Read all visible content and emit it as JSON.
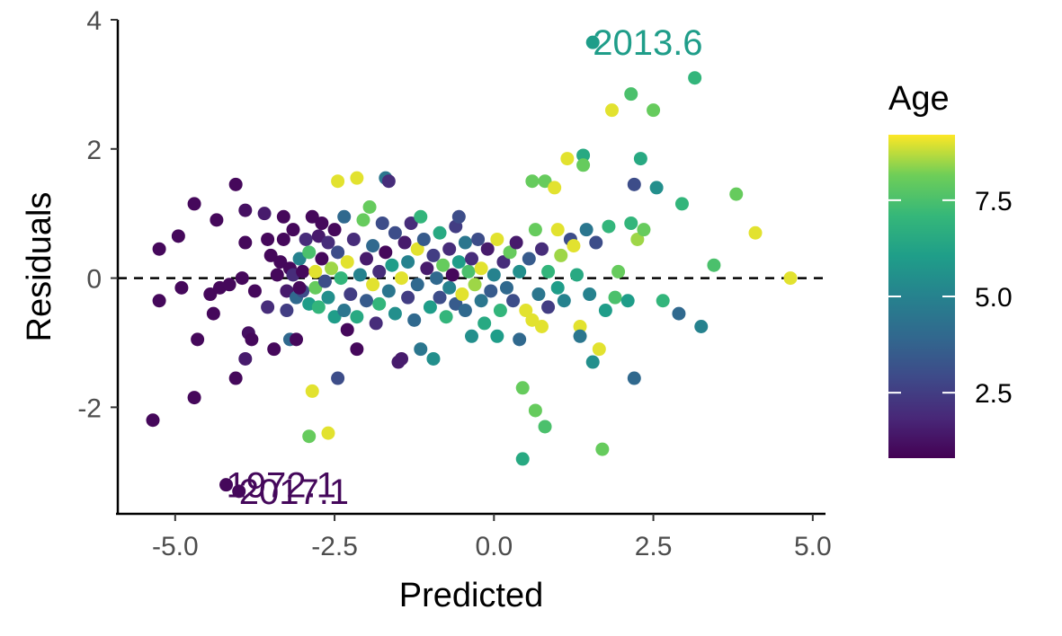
{
  "chart_data": {
    "type": "scatter",
    "title": "",
    "xlabel": "Predicted",
    "ylabel": "Residuals",
    "xlim": [
      -5.9,
      5.2
    ],
    "ylim": [
      -3.65,
      4.0
    ],
    "x_ticks": [
      -5.0,
      -2.5,
      0.0,
      2.5,
      5.0
    ],
    "x_tick_labels": [
      "-5.0",
      "-2.5",
      "0.0",
      "2.5",
      "5.0"
    ],
    "y_ticks": [
      -2,
      0,
      2,
      4
    ],
    "y_tick_labels": [
      "-2",
      "0",
      "2",
      "4"
    ],
    "grid": false,
    "reference_line": {
      "y": 0,
      "style": "dashed",
      "color": "#000000"
    },
    "color_scale": {
      "title": "Age",
      "palette": "viridis",
      "min": 0.8,
      "max": 9.2,
      "ticks": [
        2.5,
        5.0,
        7.5
      ],
      "tick_labels": [
        "2.5",
        "5.0",
        "7.5"
      ],
      "legend_position": "right"
    },
    "points": [
      {
        "x": -5.35,
        "y": -2.2,
        "age": 1.0
      },
      {
        "x": -5.25,
        "y": 0.45,
        "age": 1.0
      },
      {
        "x": -5.25,
        "y": -0.35,
        "age": 1.0
      },
      {
        "x": -4.95,
        "y": 0.65,
        "age": 1.0
      },
      {
        "x": -4.9,
        "y": -0.15,
        "age": 1.0
      },
      {
        "x": -4.7,
        "y": 1.15,
        "age": 1.0
      },
      {
        "x": -4.7,
        "y": -1.85,
        "age": 1.0
      },
      {
        "x": -4.65,
        "y": -0.95,
        "age": 1.0
      },
      {
        "x": -4.45,
        "y": -0.25,
        "age": 1.0
      },
      {
        "x": -4.4,
        "y": -0.55,
        "age": 1.0
      },
      {
        "x": -4.35,
        "y": 0.9,
        "age": 1.0
      },
      {
        "x": -4.3,
        "y": -0.15,
        "age": 1.0
      },
      {
        "x": -4.15,
        "y": -0.1,
        "age": 1.0
      },
      {
        "x": -4.05,
        "y": 1.45,
        "age": 1.0
      },
      {
        "x": -4.05,
        "y": -1.55,
        "age": 1.0
      },
      {
        "x": -3.95,
        "y": 0.0,
        "age": 1.0
      },
      {
        "x": -3.9,
        "y": 1.05,
        "age": 1.2
      },
      {
        "x": -3.9,
        "y": 0.55,
        "age": 1.0
      },
      {
        "x": -3.9,
        "y": -1.25,
        "age": 1.5
      },
      {
        "x": -3.85,
        "y": -0.85,
        "age": 1.2
      },
      {
        "x": -3.8,
        "y": -0.95,
        "age": 1.0
      },
      {
        "x": -3.75,
        "y": -0.2,
        "age": 1.0
      },
      {
        "x": -3.6,
        "y": 1.0,
        "age": 1.5
      },
      {
        "x": -3.55,
        "y": 0.6,
        "age": 1.0
      },
      {
        "x": -3.55,
        "y": -0.45,
        "age": 2.0
      },
      {
        "x": -3.5,
        "y": 0.35,
        "age": 1.0
      },
      {
        "x": -3.45,
        "y": -1.1,
        "age": 1.0
      },
      {
        "x": -3.4,
        "y": 0.05,
        "age": 1.0
      },
      {
        "x": -3.35,
        "y": 0.25,
        "age": 1.0
      },
      {
        "x": -3.3,
        "y": 0.95,
        "age": 1.0
      },
      {
        "x": -3.3,
        "y": 0.6,
        "age": 1.0
      },
      {
        "x": -3.25,
        "y": -0.2,
        "age": 1.5
      },
      {
        "x": -3.25,
        "y": -0.5,
        "age": 2.5
      },
      {
        "x": -3.2,
        "y": -0.95,
        "age": 4.0
      },
      {
        "x": -3.2,
        "y": 0.15,
        "age": 1.0
      },
      {
        "x": -3.15,
        "y": 0.75,
        "age": 1.0
      },
      {
        "x": -3.15,
        "y": 0.05,
        "age": 2.0
      },
      {
        "x": -3.1,
        "y": -0.3,
        "age": 4.0
      },
      {
        "x": -3.05,
        "y": 0.3,
        "age": 5.0
      },
      {
        "x": -3.0,
        "y": 0.1,
        "age": 1.0
      },
      {
        "x": -3.0,
        "y": -0.2,
        "age": 3.0
      },
      {
        "x": -2.95,
        "y": 0.6,
        "age": 2.0
      },
      {
        "x": -2.9,
        "y": 0.4,
        "age": 7.5
      },
      {
        "x": -2.9,
        "y": -0.4,
        "age": 6.0
      },
      {
        "x": -2.85,
        "y": 0.95,
        "age": 1.0
      },
      {
        "x": -2.8,
        "y": 0.1,
        "age": 9.0
      },
      {
        "x": -2.8,
        "y": -0.15,
        "age": 8.0
      },
      {
        "x": -2.75,
        "y": 0.65,
        "age": 1.5
      },
      {
        "x": -2.75,
        "y": -0.45,
        "age": 7.0
      },
      {
        "x": -2.7,
        "y": 0.85,
        "age": 1.0
      },
      {
        "x": -2.7,
        "y": 0.3,
        "age": 1.0
      },
      {
        "x": -2.65,
        "y": -0.05,
        "age": 3.0
      },
      {
        "x": -2.6,
        "y": 0.55,
        "age": 2.0
      },
      {
        "x": -2.6,
        "y": -0.3,
        "age": 5.5
      },
      {
        "x": -2.55,
        "y": 0.15,
        "age": 8.5
      },
      {
        "x": -2.5,
        "y": 0.75,
        "age": 1.0
      },
      {
        "x": -2.5,
        "y": -0.6,
        "age": 6.0
      },
      {
        "x": -2.45,
        "y": 0.4,
        "age": 3.0
      },
      {
        "x": -2.45,
        "y": 1.5,
        "age": 9.0
      },
      {
        "x": -2.4,
        "y": 0.0,
        "age": 7.0
      },
      {
        "x": -2.35,
        "y": 0.95,
        "age": 4.0
      },
      {
        "x": -2.35,
        "y": -0.5,
        "age": 4.5
      },
      {
        "x": -2.3,
        "y": 0.25,
        "age": 9.0
      },
      {
        "x": -2.25,
        "y": -0.25,
        "age": 2.5
      },
      {
        "x": -2.2,
        "y": 0.6,
        "age": 2.0
      },
      {
        "x": -2.15,
        "y": 1.55,
        "age": 9.0
      },
      {
        "x": -2.15,
        "y": -0.6,
        "age": 6.5
      },
      {
        "x": -2.1,
        "y": 0.05,
        "age": 5.0
      },
      {
        "x": -2.05,
        "y": 0.9,
        "age": 8.0
      },
      {
        "x": -2.0,
        "y": 0.3,
        "age": 1.5
      },
      {
        "x": -2.0,
        "y": -0.35,
        "age": 3.5
      },
      {
        "x": -1.95,
        "y": 1.1,
        "age": 8.0
      },
      {
        "x": -1.9,
        "y": 0.5,
        "age": 4.0
      },
      {
        "x": -1.9,
        "y": -0.1,
        "age": 9.0
      },
      {
        "x": -1.85,
        "y": -0.7,
        "age": 2.0
      },
      {
        "x": -1.8,
        "y": 0.1,
        "age": 2.0
      },
      {
        "x": -1.8,
        "y": -0.4,
        "age": 7.0
      },
      {
        "x": -1.75,
        "y": 0.85,
        "age": 3.0
      },
      {
        "x": -1.7,
        "y": 1.55,
        "age": 4.5
      },
      {
        "x": -1.7,
        "y": 0.4,
        "age": 1.0
      },
      {
        "x": -1.65,
        "y": 1.5,
        "age": 2.0
      },
      {
        "x": -1.65,
        "y": -0.2,
        "age": 4.5
      },
      {
        "x": -1.6,
        "y": 0.2,
        "age": 6.0
      },
      {
        "x": -1.55,
        "y": 0.7,
        "age": 3.0
      },
      {
        "x": -1.55,
        "y": -0.55,
        "age": 5.5
      },
      {
        "x": -1.5,
        "y": -1.3,
        "age": 1.5
      },
      {
        "x": -1.45,
        "y": 0.0,
        "age": 9.0
      },
      {
        "x": -1.45,
        "y": -1.25,
        "age": 1.5
      },
      {
        "x": -1.4,
        "y": 0.55,
        "age": 1.5
      },
      {
        "x": -1.35,
        "y": 0.25,
        "age": 5.0
      },
      {
        "x": -1.35,
        "y": -0.3,
        "age": 2.5
      },
      {
        "x": -1.3,
        "y": 0.85,
        "age": 2.0
      },
      {
        "x": -1.25,
        "y": -0.65,
        "age": 4.0
      },
      {
        "x": -1.2,
        "y": 0.45,
        "age": 9.0
      },
      {
        "x": -1.2,
        "y": -0.1,
        "age": 4.0
      },
      {
        "x": -1.15,
        "y": 0.95,
        "age": 7.0
      },
      {
        "x": -1.15,
        "y": -1.1,
        "age": 4.5
      },
      {
        "x": -1.1,
        "y": 0.6,
        "age": 3.5
      },
      {
        "x": -1.05,
        "y": 0.15,
        "age": 1.5
      },
      {
        "x": -1.0,
        "y": -0.45,
        "age": 6.0
      },
      {
        "x": -0.95,
        "y": 0.35,
        "age": 2.5
      },
      {
        "x": -0.95,
        "y": -1.25,
        "age": 5.5
      },
      {
        "x": -0.9,
        "y": 0.0,
        "age": 4.0
      },
      {
        "x": -0.85,
        "y": 0.7,
        "age": 6.5
      },
      {
        "x": -0.85,
        "y": -0.3,
        "age": 3.0
      },
      {
        "x": -0.8,
        "y": 0.2,
        "age": 8.0
      },
      {
        "x": -0.75,
        "y": -0.6,
        "age": 7.0
      },
      {
        "x": -0.7,
        "y": 0.45,
        "age": 2.0
      },
      {
        "x": -0.7,
        "y": -0.15,
        "age": 5.0
      },
      {
        "x": -0.65,
        "y": 0.05,
        "age": 1.0
      },
      {
        "x": -0.6,
        "y": 0.8,
        "age": 2.5
      },
      {
        "x": -0.6,
        "y": -0.4,
        "age": 3.5
      },
      {
        "x": -0.55,
        "y": 0.95,
        "age": 3.0
      },
      {
        "x": -0.55,
        "y": 0.25,
        "age": 6.0
      },
      {
        "x": -0.5,
        "y": -0.25,
        "age": 9.0
      },
      {
        "x": -0.45,
        "y": 0.55,
        "age": 4.5
      },
      {
        "x": -0.45,
        "y": -0.5,
        "age": 4.0
      },
      {
        "x": -0.4,
        "y": 0.1,
        "age": 7.5
      },
      {
        "x": -0.35,
        "y": 0.3,
        "age": 2.0
      },
      {
        "x": -0.35,
        "y": -0.9,
        "age": 5.5
      },
      {
        "x": -0.3,
        "y": -0.1,
        "age": 8.5
      },
      {
        "x": -0.25,
        "y": 0.6,
        "age": 3.0
      },
      {
        "x": -0.2,
        "y": 0.15,
        "age": 9.0
      },
      {
        "x": -0.2,
        "y": -0.35,
        "age": 4.5
      },
      {
        "x": -0.15,
        "y": -0.7,
        "age": 6.5
      },
      {
        "x": -0.1,
        "y": 0.45,
        "age": 1.5
      },
      {
        "x": -0.05,
        "y": -0.2,
        "age": 3.5
      },
      {
        "x": 0.0,
        "y": 0.05,
        "age": 5.0
      },
      {
        "x": 0.05,
        "y": 0.6,
        "age": 9.0
      },
      {
        "x": 0.05,
        "y": -0.9,
        "age": 6.0
      },
      {
        "x": 0.1,
        "y": -0.5,
        "age": 7.0
      },
      {
        "x": 0.15,
        "y": 0.25,
        "age": 2.0
      },
      {
        "x": 0.2,
        "y": -0.15,
        "age": 4.0
      },
      {
        "x": 0.25,
        "y": 0.4,
        "age": 8.0
      },
      {
        "x": 0.3,
        "y": -0.35,
        "age": 3.0
      },
      {
        "x": 0.35,
        "y": 0.55,
        "age": 1.5
      },
      {
        "x": 0.4,
        "y": -0.95,
        "age": 4.0
      },
      {
        "x": 0.4,
        "y": 0.1,
        "age": 5.5
      },
      {
        "x": 0.45,
        "y": -1.7,
        "age": 8.0
      },
      {
        "x": 0.45,
        "y": -2.8,
        "age": 6.5
      },
      {
        "x": 0.5,
        "y": -0.5,
        "age": 9.0
      },
      {
        "x": 0.55,
        "y": 0.3,
        "age": 3.5
      },
      {
        "x": 0.6,
        "y": 1.5,
        "age": 8.0
      },
      {
        "x": 0.6,
        "y": -0.65,
        "age": 9.0
      },
      {
        "x": 0.65,
        "y": 0.75,
        "age": 8.0
      },
      {
        "x": 0.65,
        "y": -2.05,
        "age": 8.0
      },
      {
        "x": 0.7,
        "y": -0.25,
        "age": 4.5
      },
      {
        "x": 0.75,
        "y": 0.45,
        "age": 2.0
      },
      {
        "x": 0.75,
        "y": -0.75,
        "age": 9.0
      },
      {
        "x": 0.8,
        "y": 1.5,
        "age": 8.0
      },
      {
        "x": 0.8,
        "y": -2.3,
        "age": 7.5
      },
      {
        "x": 0.85,
        "y": 0.1,
        "age": 7.0
      },
      {
        "x": 0.85,
        "y": -0.45,
        "age": 2.5
      },
      {
        "x": 0.95,
        "y": 1.4,
        "age": 9.0
      },
      {
        "x": 1.0,
        "y": 0.75,
        "age": 9.0
      },
      {
        "x": 1.0,
        "y": -0.15,
        "age": 6.0
      },
      {
        "x": 1.05,
        "y": 0.35,
        "age": 8.5
      },
      {
        "x": 1.1,
        "y": -0.35,
        "age": 5.0
      },
      {
        "x": 1.15,
        "y": 1.85,
        "age": 9.0
      },
      {
        "x": 1.2,
        "y": 0.6,
        "age": 3.0
      },
      {
        "x": 1.25,
        "y": 0.5,
        "age": 9.0
      },
      {
        "x": 1.3,
        "y": 0.05,
        "age": 6.5
      },
      {
        "x": 1.35,
        "y": -0.75,
        "age": 9.0
      },
      {
        "x": 1.35,
        "y": -0.9,
        "age": 4.5
      },
      {
        "x": 1.4,
        "y": 1.9,
        "age": 6.5
      },
      {
        "x": 1.4,
        "y": 1.75,
        "age": 8.0
      },
      {
        "x": 1.45,
        "y": 0.75,
        "age": 4.5
      },
      {
        "x": 1.5,
        "y": -0.25,
        "age": 5.0
      },
      {
        "x": 1.55,
        "y": -1.3,
        "age": 5.5
      },
      {
        "x": 1.55,
        "y": 3.65,
        "age": 6.0
      },
      {
        "x": 1.6,
        "y": 0.55,
        "age": 3.0
      },
      {
        "x": 1.65,
        "y": -1.1,
        "age": 9.0
      },
      {
        "x": 1.7,
        "y": -2.65,
        "age": 8.0
      },
      {
        "x": 1.75,
        "y": -0.5,
        "age": 6.0
      },
      {
        "x": 1.8,
        "y": 0.8,
        "age": 7.0
      },
      {
        "x": 1.85,
        "y": 2.6,
        "age": 9.0
      },
      {
        "x": 1.9,
        "y": -0.3,
        "age": 7.5
      },
      {
        "x": 1.95,
        "y": 0.1,
        "age": 8.0
      },
      {
        "x": 2.1,
        "y": -0.35,
        "age": 6.0
      },
      {
        "x": 2.15,
        "y": 2.85,
        "age": 7.5
      },
      {
        "x": 2.15,
        "y": 0.85,
        "age": 7.0
      },
      {
        "x": 2.2,
        "y": 1.45,
        "age": 3.0
      },
      {
        "x": 2.2,
        "y": -1.55,
        "age": 4.0
      },
      {
        "x": 2.25,
        "y": 0.6,
        "age": 8.5
      },
      {
        "x": 2.3,
        "y": 1.85,
        "age": 6.5
      },
      {
        "x": 2.35,
        "y": 0.75,
        "age": 8.0
      },
      {
        "x": 2.5,
        "y": 2.6,
        "age": 8.0
      },
      {
        "x": 2.55,
        "y": 1.4,
        "age": 5.5
      },
      {
        "x": 2.65,
        "y": -0.35,
        "age": 7.0
      },
      {
        "x": 2.9,
        "y": -0.55,
        "age": 4.0
      },
      {
        "x": 2.95,
        "y": 1.15,
        "age": 7.0
      },
      {
        "x": 3.15,
        "y": 3.1,
        "age": 7.0
      },
      {
        "x": 3.25,
        "y": -0.75,
        "age": 5.0
      },
      {
        "x": 3.45,
        "y": 0.2,
        "age": 7.5
      },
      {
        "x": 3.8,
        "y": 1.3,
        "age": 8.0
      },
      {
        "x": 4.1,
        "y": 0.7,
        "age": 9.0
      },
      {
        "x": 4.65,
        "y": 0.0,
        "age": 9.0
      },
      {
        "x": -2.85,
        "y": -1.75,
        "age": 9.0
      },
      {
        "x": -2.9,
        "y": -2.45,
        "age": 8.0
      },
      {
        "x": -2.6,
        "y": -2.4,
        "age": 9.0
      },
      {
        "x": -2.45,
        "y": -1.55,
        "age": 3.0
      },
      {
        "x": -2.3,
        "y": -0.8,
        "age": 1.0
      },
      {
        "x": -2.15,
        "y": -1.1,
        "age": 1.0
      },
      {
        "x": -3.1,
        "y": -0.95,
        "age": 1.0
      },
      {
        "x": -3.05,
        "y": -0.15,
        "age": 1.0
      },
      {
        "x": -4.2,
        "y": -3.2,
        "age": 1.0
      },
      {
        "x": -4.0,
        "y": -3.3,
        "age": 1.0
      }
    ],
    "labeled_points": [
      {
        "x": 1.55,
        "y": 3.65,
        "age": 6.0,
        "label": "2013.6"
      },
      {
        "x": -4.2,
        "y": -3.2,
        "age": 1.0,
        "label": "1972.1"
      },
      {
        "x": -4.0,
        "y": -3.3,
        "age": 1.0,
        "label": "2017.1"
      }
    ]
  }
}
